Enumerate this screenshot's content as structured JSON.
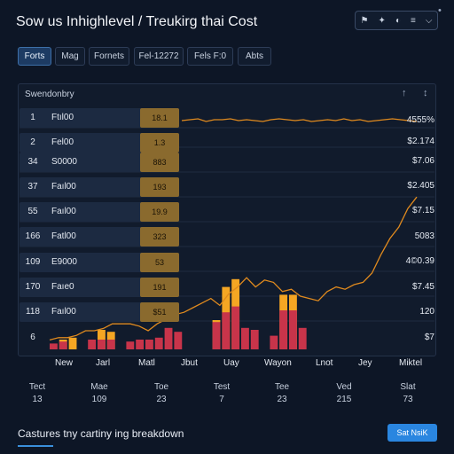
{
  "header": {
    "title": "Sow us Inhighlevel / Treukirg thai Cost",
    "controls": [
      "⚑",
      "✦",
      "◐",
      "≡",
      "⌵"
    ],
    "bell": "•"
  },
  "toolbar": {
    "tabs": [
      "Forts",
      "Mag",
      "Fornets",
      "Fel-12272",
      "Fels F:0",
      "Abts"
    ]
  },
  "panel": {
    "title": "Swendonbry",
    "icons": [
      "↑",
      "↕"
    ],
    "rows": [
      {
        "num": "1",
        "name": "Ftıl00",
        "badge": "18.1"
      },
      {
        "num": "2",
        "name": "Fel00",
        "badge": "1.3"
      },
      {
        "num": "34",
        "name": "S0000",
        "badge": "883"
      },
      {
        "num": "37",
        "name": "Faıl00",
        "badge": "193"
      },
      {
        "num": "55",
        "name": "Faıl00",
        "badge": "19.9"
      },
      {
        "num": "166",
        "name": "Fatl00",
        "badge": "323"
      },
      {
        "num": "109",
        "name": "E9000",
        "badge": "53"
      },
      {
        "num": "170",
        "name": "Faıe0",
        "badge": "191"
      },
      {
        "num": "118",
        "name": "Faıl00",
        "badge": "$51"
      },
      {
        "num": "6",
        "name": "",
        "badge": ""
      }
    ],
    "right_values": [
      "4555%",
      "$2.174",
      "$7.06",
      "$2.405",
      "$7.15",
      "5083",
      "4©0.39",
      "$7.45",
      "120",
      "$7"
    ],
    "x_labels": [
      "New",
      "Jarl",
      "Matl",
      "Jbut",
      "Uay",
      "Wayon",
      "Lnot",
      "Jey",
      "Miktel"
    ]
  },
  "chart_data": {
    "type": "bar",
    "categories": [
      "c1",
      "c2",
      "c3",
      "c4",
      "c5",
      "c6",
      "c7",
      "c8",
      "c9",
      "c10",
      "c11",
      "c12",
      "c13",
      "c14",
      "c15",
      "c16",
      "c17",
      "c18",
      "c19",
      "c20",
      "c21",
      "c22",
      "c23",
      "c24",
      "c25",
      "c26",
      "c27",
      "c28",
      "c29",
      "c30"
    ],
    "series": [
      {
        "values": [
          3,
          4,
          0,
          0,
          5,
          5,
          5,
          0,
          4,
          5,
          5,
          6,
          11,
          9,
          0,
          0,
          0,
          14,
          19,
          22,
          11,
          10,
          0,
          7,
          20,
          20,
          11,
          0,
          0,
          0
        ]
      },
      {
        "values": [
          0,
          5,
          6,
          0,
          0,
          10,
          9,
          0,
          0,
          0,
          0,
          0,
          0,
          0,
          0,
          0,
          0,
          15,
          32,
          36,
          0,
          0,
          0,
          0,
          28,
          28,
          0,
          0,
          0,
          0
        ]
      }
    ],
    "line": [
      1,
      2,
      2,
      3,
      5,
      5,
      6,
      8,
      8,
      8,
      7,
      5,
      8,
      10,
      12,
      13,
      15,
      17,
      19,
      16,
      21,
      24,
      28,
      24,
      27,
      26,
      22,
      23,
      20,
      19,
      18,
      22,
      24,
      23,
      25,
      26,
      30,
      38,
      45,
      50,
      58,
      63
    ],
    "line_top": [
      96,
      97,
      98,
      95,
      97,
      97,
      98,
      96,
      97,
      96,
      95,
      97,
      98,
      97,
      96,
      97,
      95,
      96,
      97,
      96,
      98,
      96,
      97,
      95,
      96,
      97,
      98,
      97,
      96,
      95
    ],
    "colors": {
      "bar": "#c8344a",
      "bar_high": "#f5a623",
      "line": "#e08a1e"
    }
  },
  "summary": {
    "stats": [
      {
        "label": "Tect",
        "value": "13"
      },
      {
        "label": "Mae",
        "value": "109"
      },
      {
        "label": "Toe",
        "value": "23"
      },
      {
        "label": "Test",
        "value": "7"
      },
      {
        "label": "Tee",
        "value": "23"
      },
      {
        "label": "Ved",
        "value": "215"
      },
      {
        "label": "Slat",
        "value": "73"
      }
    ]
  },
  "footer": {
    "text": "Castures tny cartiny ing breakdown",
    "button": "Sat NsiK"
  }
}
